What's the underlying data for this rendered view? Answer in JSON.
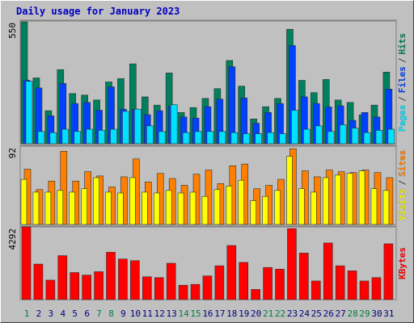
{
  "chart_data": [
    {
      "type": "bar",
      "title": "Daily usage for January 2023",
      "ylim": [
        0,
        550
      ],
      "yticks": [
        550
      ],
      "legend_separator": "/",
      "series": [
        {
          "name": "Hits",
          "color": "#00805c",
          "values": [
            546,
            295,
            148,
            332,
            225,
            218,
            196,
            277,
            292,
            358,
            210,
            173,
            317,
            140,
            162,
            203,
            247,
            373,
            258,
            111,
            166,
            203,
            513,
            284,
            229,
            288,
            196,
            185,
            129,
            173,
            321
          ]
        },
        {
          "name": "Files",
          "color": "#0040ff",
          "values": [
            285,
            250,
            125,
            270,
            180,
            185,
            150,
            255,
            155,
            155,
            130,
            148,
            168,
            120,
            115,
            166,
            200,
            345,
            205,
            92,
            140,
            180,
            440,
            210,
            180,
            165,
            170,
            105,
            140,
            120,
            245
          ]
        },
        {
          "name": "Pages",
          "color": "#00e0ff",
          "values": [
            280,
            55,
            50,
            65,
            55,
            65,
            60,
            65,
            145,
            155,
            80,
            55,
            175,
            50,
            55,
            55,
            55,
            50,
            45,
            45,
            50,
            45,
            150,
            65,
            80,
            55,
            85,
            70,
            50,
            60,
            65
          ]
        }
      ]
    },
    {
      "type": "bar",
      "ylim": [
        0,
        92
      ],
      "yticks": [
        92
      ],
      "legend_separator": "/",
      "series": [
        {
          "name": "Sites",
          "color": "#ff8000",
          "values": [
            65,
            41,
            51,
            86,
            51,
            62,
            57,
            44,
            56,
            77,
            50,
            60,
            54,
            46,
            59,
            64,
            48,
            69,
            71,
            42,
            46,
            53,
            89,
            63,
            56,
            64,
            62,
            61,
            64,
            61,
            55
          ]
        },
        {
          "name": "Visits",
          "color": "#ffff00",
          "values": [
            53,
            38,
            38,
            40,
            38,
            42,
            55,
            38,
            37,
            55,
            38,
            37,
            40,
            37,
            38,
            33,
            41,
            45,
            52,
            28,
            33,
            40,
            80,
            42,
            38,
            55,
            58,
            60,
            63,
            42,
            40
          ]
        }
      ]
    },
    {
      "type": "bar",
      "ylim": [
        0,
        4292
      ],
      "yticks": [
        4292
      ],
      "series": [
        {
          "name": "KBytes",
          "color": "#ff0000",
          "values": [
            4292,
            2096,
            1148,
            2595,
            1597,
            1447,
            1647,
            2795,
            2396,
            2296,
            1347,
            1298,
            2146,
            848,
            898,
            1397,
            1996,
            3194,
            2196,
            599,
            1896,
            1797,
            4192,
            2745,
            1098,
            3344,
            1996,
            1697,
            1098,
            1298,
            3294
          ]
        }
      ],
      "categories": [
        "1",
        "2",
        "3",
        "4",
        "5",
        "6",
        "7",
        "8",
        "9",
        "10",
        "11",
        "12",
        "13",
        "14",
        "15",
        "16",
        "17",
        "18",
        "19",
        "20",
        "21",
        "22",
        "23",
        "24",
        "25",
        "26",
        "27",
        "28",
        "29",
        "30",
        "31"
      ],
      "category_colors": [
        "#008040",
        "#000080",
        "#000080",
        "#000080",
        "#000080",
        "#000080",
        "#008040",
        "#008040",
        "#000080",
        "#000080",
        "#000080",
        "#000080",
        "#000080",
        "#008040",
        "#008040",
        "#000080",
        "#000080",
        "#000080",
        "#000080",
        "#000080",
        "#008040",
        "#008040",
        "#000080",
        "#000080",
        "#000080",
        "#000080",
        "#000080",
        "#008040",
        "#008040",
        "#000080",
        "#000080"
      ]
    }
  ]
}
